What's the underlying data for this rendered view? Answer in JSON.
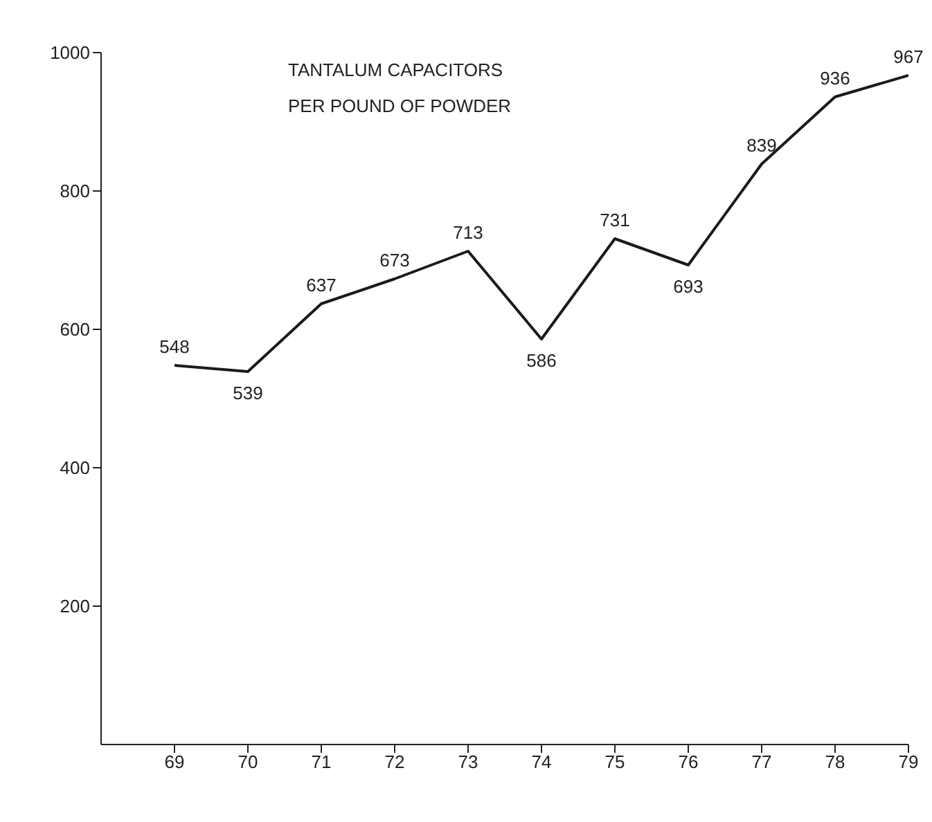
{
  "chart_data": {
    "type": "line",
    "title": "TANTALUM CAPACITORS\nPER POUND OF POWDER",
    "x": [
      69,
      70,
      71,
      72,
      73,
      74,
      75,
      76,
      77,
      78,
      79
    ],
    "series": [
      {
        "color": "#1a1a1a",
        "values": [
          548,
          539,
          637,
          673,
          713,
          586,
          731,
          693,
          839,
          936,
          967
        ]
      }
    ],
    "xlim": [
      68,
      79
    ],
    "xticks": [
      69,
      70,
      71,
      72,
      73,
      74,
      75,
      76,
      77,
      78,
      79
    ],
    "ylim": [
      0,
      1000
    ],
    "yticks": [
      200,
      400,
      600,
      800,
      1000
    ],
    "data_labels": true,
    "grid": false,
    "marker": "none",
    "line_style": "solid"
  }
}
